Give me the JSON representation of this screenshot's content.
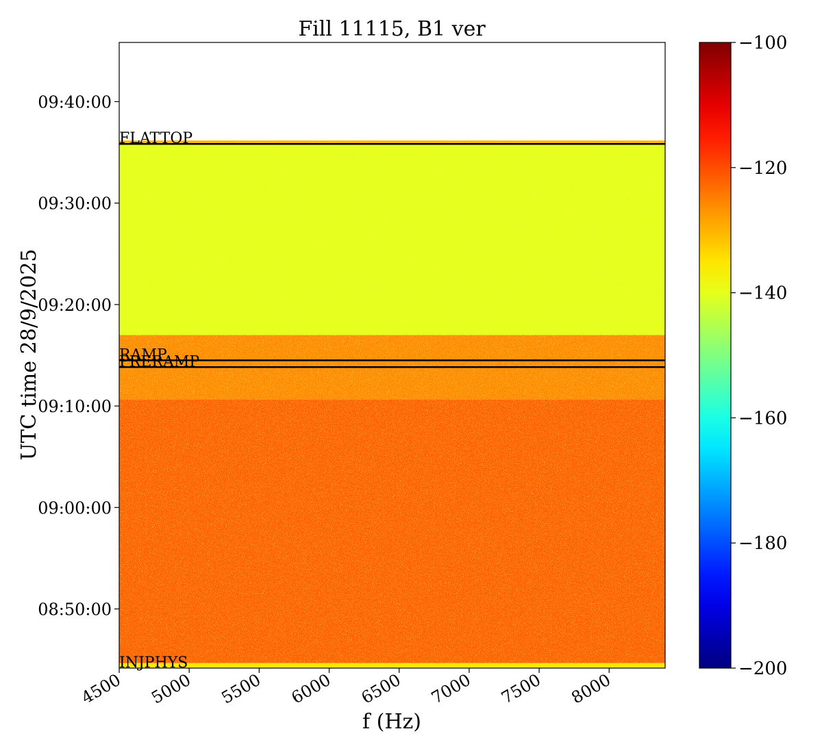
{
  "chart_data": {
    "type": "heatmap",
    "title": "Fill 11115, B1 ver",
    "xlabel": "f (Hz)",
    "ylabel": "UTC time 28/9/2025",
    "x_range": [
      4500,
      8400
    ],
    "x_ticks": [
      4500,
      5000,
      5500,
      6000,
      6500,
      7000,
      7500,
      8000
    ],
    "x_tick_labels": [
      "4500",
      "5000",
      "5500",
      "6000",
      "6500",
      "7000",
      "7500",
      "8000"
    ],
    "y_range": [
      "08:44:10",
      "09:45:50"
    ],
    "y_ticks": [
      "08:50:00",
      "09:00:00",
      "09:10:00",
      "09:20:00",
      "09:30:00",
      "09:40:00"
    ],
    "y_tick_labels": [
      "08:50:00",
      "09:00:00",
      "09:10:00",
      "09:20:00",
      "09:30:00",
      "09:40:00"
    ],
    "colormap": "jet",
    "colorbar": {
      "range": [
        -200,
        -100
      ],
      "ticks": [
        -100,
        -120,
        -140,
        -160,
        -180,
        -200
      ],
      "tick_labels": [
        "−100",
        "−120",
        "−140",
        "−160",
        "−180",
        "−200"
      ]
    },
    "bands": [
      {
        "from": "08:44:10",
        "to": "08:44:40",
        "level": -135
      },
      {
        "from": "08:44:40",
        "to": "09:10:40",
        "level": -122
      },
      {
        "from": "09:10:40",
        "to": "09:17:00",
        "level": -126
      },
      {
        "from": "09:17:00",
        "to": "09:35:50",
        "level": -140
      },
      {
        "from": "09:35:50",
        "to": "09:36:10",
        "level": -130
      }
    ],
    "data_end": "09:36:10",
    "phase_markers": [
      {
        "label": "INJPHYS",
        "time": "08:44:10"
      },
      {
        "label": "PRERAMP",
        "time": "09:13:50"
      },
      {
        "label": "RAMP",
        "time": "09:14:30"
      },
      {
        "label": "FLATTOP",
        "time": "09:35:50"
      }
    ]
  }
}
